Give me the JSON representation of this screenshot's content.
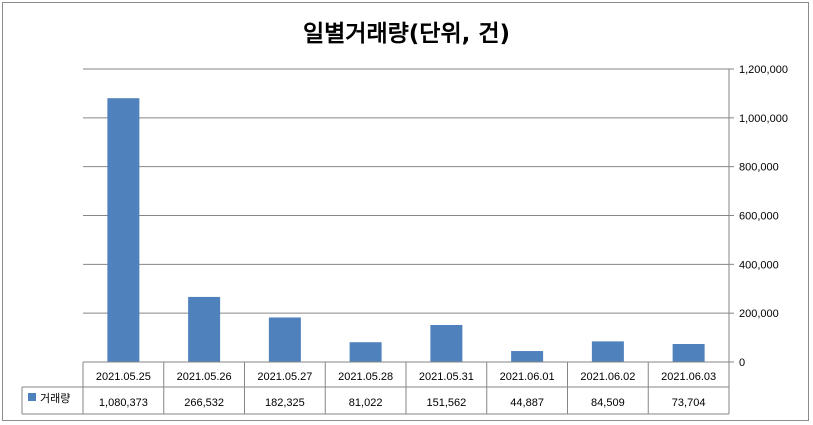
{
  "chart_data": {
    "type": "bar",
    "title": "일별거래량(단위, 건)",
    "categories": [
      "2021.05.25",
      "2021.05.26",
      "2021.05.27",
      "2021.05.28",
      "2021.05.31",
      "2021.06.01",
      "2021.06.02",
      "2021.06.03"
    ],
    "series": [
      {
        "name": "거래량",
        "values": [
          1080373,
          266532,
          182325,
          81022,
          151562,
          44887,
          84509,
          73704
        ],
        "value_labels": [
          "1,080,373",
          "266,532",
          "182,325",
          "81,022",
          "151,562",
          "44,887",
          "84,509",
          "73,704"
        ],
        "color": "#4f81bd"
      }
    ],
    "ylim": [
      0,
      1200000
    ],
    "yticks": [
      0,
      200000,
      400000,
      600000,
      800000,
      1000000,
      1200000
    ],
    "ytick_labels": [
      "0",
      "200,000",
      "400,000",
      "600,000",
      "800,000",
      "1,000,000",
      "1,200,000"
    ],
    "y_axis_side": "right",
    "grid": true,
    "legend": "in data table",
    "data_table": true
  }
}
